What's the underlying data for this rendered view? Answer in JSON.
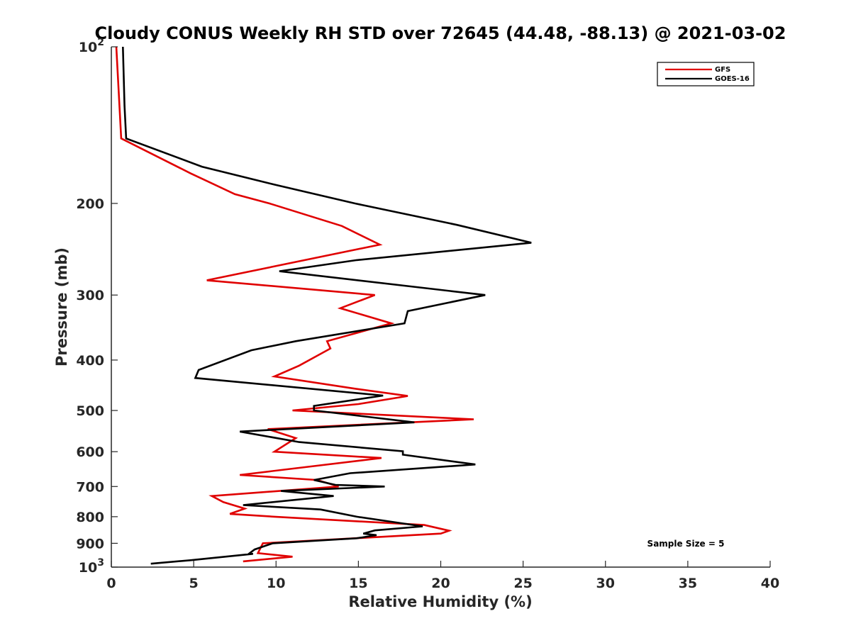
{
  "chart_data": {
    "type": "line",
    "title": "Cloudy CONUS Weekly RH STD over 72645 (44.48, -88.13) @ 2021-03-02",
    "xlabel": "Relative Humidity (%)",
    "ylabel": "Pressure (mb)",
    "xlim": [
      0,
      40
    ],
    "ylim": [
      100,
      1000
    ],
    "y_scale": "log",
    "y_reversed": true,
    "x_ticks": [
      "0",
      "5",
      "10",
      "15",
      "20",
      "25",
      "30",
      "35",
      "40"
    ],
    "y_ticks": [
      {
        "value": 100,
        "base": "10",
        "exp": "2"
      },
      {
        "value": 200,
        "label": "200"
      },
      {
        "value": 300,
        "label": "300"
      },
      {
        "value": 400,
        "label": "400"
      },
      {
        "value": 500,
        "label": "500"
      },
      {
        "value": 600,
        "label": "600"
      },
      {
        "value": 700,
        "label": "700"
      },
      {
        "value": 800,
        "label": "800"
      },
      {
        "value": 900,
        "label": "900"
      },
      {
        "value": 1000,
        "base": "10",
        "exp": "3"
      }
    ],
    "legend_position": "top-right",
    "annotation": "Sample Size = 5",
    "series": [
      {
        "name": "GFS",
        "color": "#e00000",
        "points": [
          [
            0.3,
            100
          ],
          [
            0.6,
            150
          ],
          [
            4.8,
            175
          ],
          [
            7.5,
            192
          ],
          [
            9.6,
            200
          ],
          [
            14.0,
            221
          ],
          [
            16.3,
            240
          ],
          [
            5.8,
            281
          ],
          [
            16.0,
            300
          ],
          [
            13.9,
            318
          ],
          [
            17.0,
            340
          ],
          [
            13.1,
            368
          ],
          [
            13.3,
            380
          ],
          [
            11.4,
            410
          ],
          [
            9.9,
            430
          ],
          [
            14.8,
            454
          ],
          [
            18.0,
            469
          ],
          [
            15.0,
            486
          ],
          [
            11.0,
            500
          ],
          [
            22.0,
            520
          ],
          [
            9.5,
            543
          ],
          [
            11.2,
            565
          ],
          [
            9.9,
            600
          ],
          [
            16.4,
            617
          ],
          [
            7.8,
            665
          ],
          [
            12.5,
            680
          ],
          [
            13.8,
            700
          ],
          [
            6.1,
            730
          ],
          [
            6.8,
            750
          ],
          [
            8.1,
            772
          ],
          [
            7.2,
            790
          ],
          [
            9.9,
            800
          ],
          [
            19.0,
            830
          ],
          [
            20.5,
            851
          ],
          [
            20.0,
            862
          ],
          [
            9.2,
            900
          ],
          [
            8.9,
            940
          ],
          [
            11.0,
            955
          ],
          [
            8.0,
            975
          ]
        ]
      },
      {
        "name": "GOES-16",
        "color": "#000000",
        "points": [
          [
            0.7,
            100
          ],
          [
            0.8,
            130
          ],
          [
            0.9,
            150
          ],
          [
            5.5,
            170
          ],
          [
            9.9,
            184
          ],
          [
            14.8,
            200
          ],
          [
            21.0,
            220
          ],
          [
            25.5,
            238
          ],
          [
            14.9,
            257
          ],
          [
            10.2,
            270
          ],
          [
            22.7,
            300
          ],
          [
            18.0,
            322
          ],
          [
            17.8,
            340
          ],
          [
            11.2,
            368
          ],
          [
            8.5,
            383
          ],
          [
            5.3,
            418
          ],
          [
            5.1,
            433
          ],
          [
            16.5,
            468
          ],
          [
            12.3,
            490
          ],
          [
            12.3,
            500
          ],
          [
            18.4,
            527
          ],
          [
            7.8,
            549
          ],
          [
            11.4,
            575
          ],
          [
            17.7,
            599
          ],
          [
            17.7,
            608
          ],
          [
            22.1,
            635
          ],
          [
            14.5,
            660
          ],
          [
            12.3,
            680
          ],
          [
            13.6,
            695
          ],
          [
            16.6,
            700
          ],
          [
            10.3,
            714
          ],
          [
            13.5,
            730
          ],
          [
            8.0,
            760
          ],
          [
            12.7,
            775
          ],
          [
            14.9,
            800
          ],
          [
            18.9,
            835
          ],
          [
            16.0,
            850
          ],
          [
            15.3,
            862
          ],
          [
            16.1,
            868
          ],
          [
            14.9,
            880
          ],
          [
            9.8,
            900
          ],
          [
            8.7,
            925
          ],
          [
            8.4,
            940
          ],
          [
            8.6,
            943
          ],
          [
            4.8,
            970
          ],
          [
            2.4,
            985
          ]
        ]
      }
    ]
  }
}
